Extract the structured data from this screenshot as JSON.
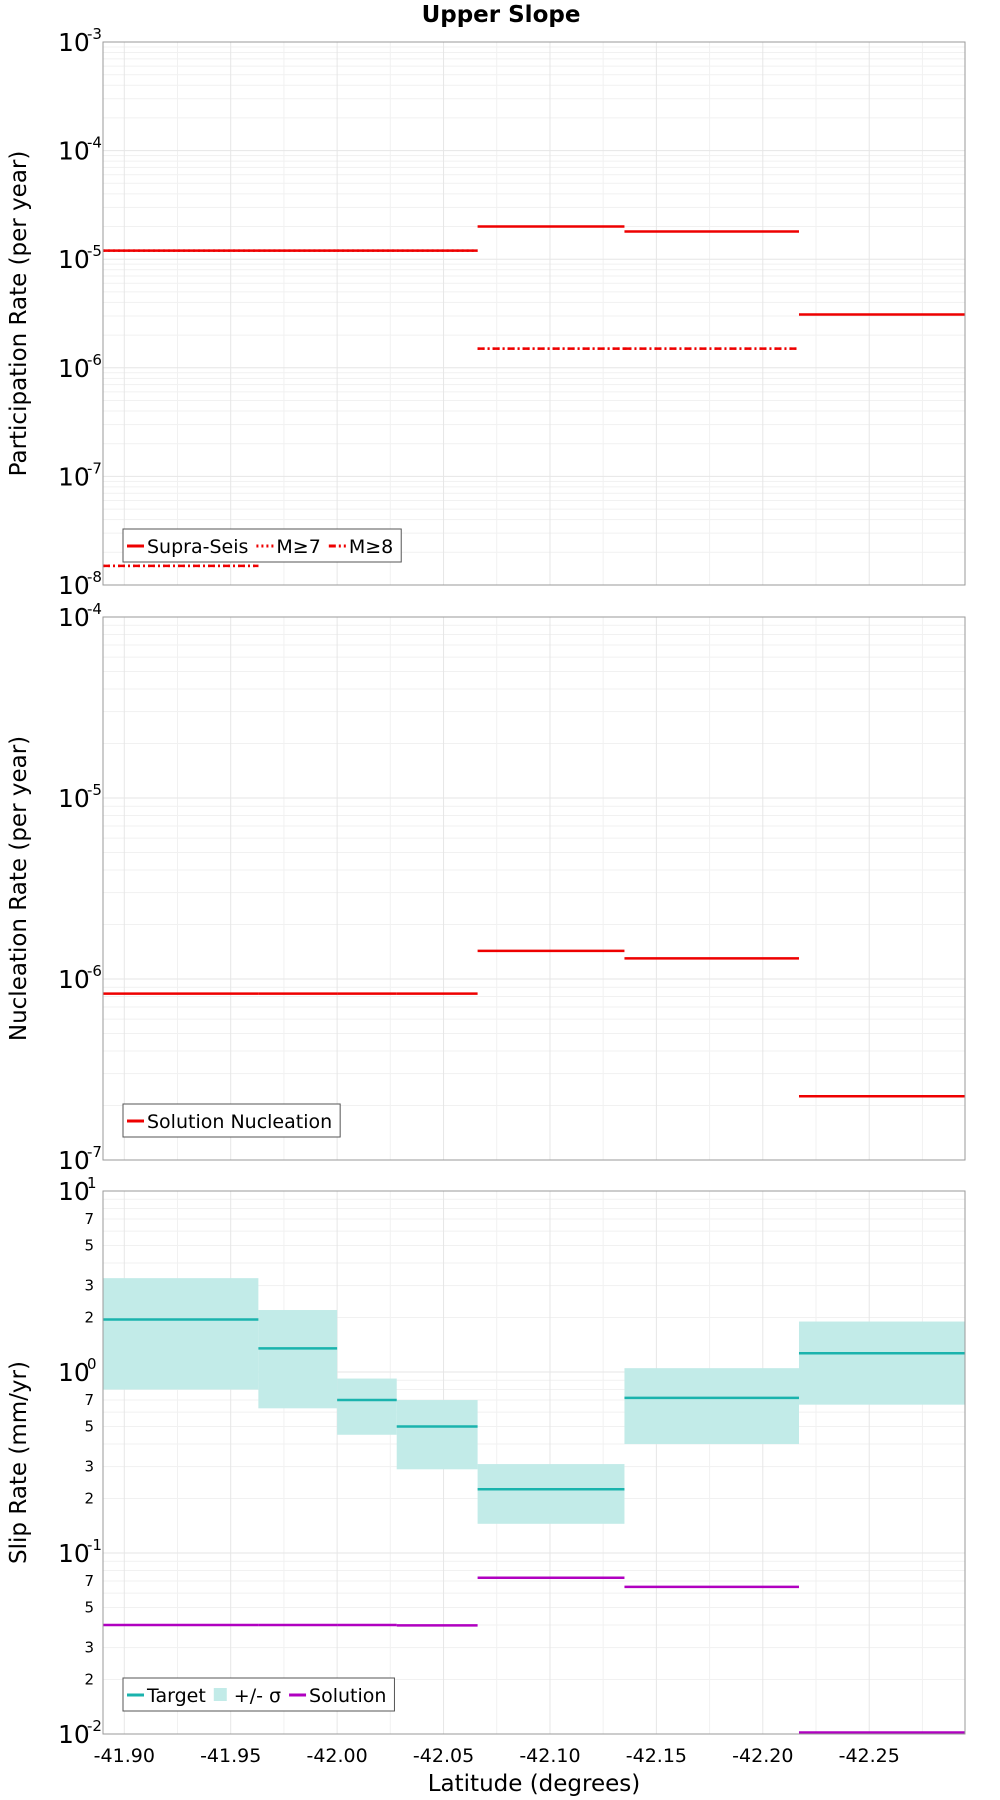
{
  "chart_data": {
    "type": "line",
    "title": "Upper Slope",
    "xlabel": "Latitude (degrees)",
    "xlim": [
      -41.89,
      -42.295
    ],
    "x_ticks": [
      -41.9,
      -41.95,
      -42.0,
      -42.05,
      -42.1,
      -42.15,
      -42.2,
      -42.25
    ],
    "x_tick_labels": [
      "-41.90",
      "-41.95",
      "-42.00",
      "-42.05",
      "-42.10",
      "-42.15",
      "-42.20",
      "-42.25"
    ],
    "panels": [
      {
        "name": "participation",
        "ylabel": "Participation Rate (per year)",
        "yscale": "log",
        "ylim": [
          1e-08,
          0.001
        ],
        "y_major_exponents": [
          -8,
          -7,
          -6,
          -5,
          -4,
          -3
        ],
        "y_minor_labels": [],
        "legend": [
          {
            "label": "Supra-Seis",
            "style": "solid",
            "color": "#ee0000"
          },
          {
            "label": "M≥7",
            "style": "dotted",
            "color": "#ee0000"
          },
          {
            "label": "M≥8",
            "style": "dashdot",
            "color": "#ee0000"
          }
        ],
        "series": [
          {
            "name": "Supra-Seis",
            "style": "solid",
            "color": "#ee0000",
            "segments": [
              {
                "x0": -41.89,
                "x1": -41.963,
                "y": 1.2e-05
              },
              {
                "x0": -41.963,
                "x1": -42.0,
                "y": 1.2e-05
              },
              {
                "x0": -42.0,
                "x1": -42.028,
                "y": 1.2e-05
              },
              {
                "x0": -42.028,
                "x1": -42.066,
                "y": 1.2e-05
              },
              {
                "x0": -42.066,
                "x1": -42.135,
                "y": 2e-05
              },
              {
                "x0": -42.135,
                "x1": -42.217,
                "y": 1.8e-05
              },
              {
                "x0": -42.217,
                "x1": -42.295,
                "y": 3.1e-06
              }
            ]
          },
          {
            "name": "M≥7",
            "style": "dotted",
            "color": "#ee0000",
            "segments": [
              {
                "x0": -41.89,
                "x1": -41.963,
                "y": 1.2e-05
              },
              {
                "x0": -41.963,
                "x1": -42.0,
                "y": 1.2e-05
              },
              {
                "x0": -42.0,
                "x1": -42.028,
                "y": 1.2e-05
              },
              {
                "x0": -42.028,
                "x1": -42.066,
                "y": 1.2e-05
              },
              {
                "x0": -42.066,
                "x1": -42.135,
                "y": 1.5e-06
              },
              {
                "x0": -42.135,
                "x1": -42.217,
                "y": 1.5e-06
              },
              {
                "x0": -41.89,
                "x1": -41.963,
                "y": 1.5e-08
              }
            ]
          },
          {
            "name": "M≥8",
            "style": "dashdot",
            "color": "#ee0000",
            "segments": [
              {
                "x0": -42.066,
                "x1": -42.135,
                "y": 1.5e-06
              },
              {
                "x0": -42.135,
                "x1": -42.217,
                "y": 1.5e-06
              },
              {
                "x0": -41.89,
                "x1": -41.963,
                "y": 1.5e-08
              }
            ]
          }
        ]
      },
      {
        "name": "nucleation",
        "ylabel": "Nucleation Rate (per year)",
        "yscale": "log",
        "ylim": [
          1e-07,
          0.0001
        ],
        "y_major_exponents": [
          -7,
          -6,
          -5,
          -4
        ],
        "y_minor_labels": [],
        "legend": [
          {
            "label": "Solution Nucleation",
            "style": "solid",
            "color": "#ee0000"
          }
        ],
        "series": [
          {
            "name": "Solution Nucleation",
            "style": "solid",
            "color": "#ee0000",
            "segments": [
              {
                "x0": -41.89,
                "x1": -41.963,
                "y": 8.3e-07
              },
              {
                "x0": -41.963,
                "x1": -42.0,
                "y": 8.3e-07
              },
              {
                "x0": -42.0,
                "x1": -42.028,
                "y": 8.3e-07
              },
              {
                "x0": -42.028,
                "x1": -42.066,
                "y": 8.3e-07
              },
              {
                "x0": -42.066,
                "x1": -42.135,
                "y": 1.43e-06
              },
              {
                "x0": -42.135,
                "x1": -42.217,
                "y": 1.3e-06
              },
              {
                "x0": -42.217,
                "x1": -42.295,
                "y": 2.25e-07
              }
            ]
          }
        ]
      },
      {
        "name": "slip",
        "ylabel": "Slip Rate (mm/yr)",
        "yscale": "log",
        "ylim": [
          0.01,
          10
        ],
        "y_major_exponents": [
          -2,
          -1,
          0,
          1
        ],
        "y_minor_labels": [
          "2",
          "3",
          "5",
          "7"
        ],
        "legend": [
          {
            "label": "Target",
            "style": "solid",
            "color": "#1ab3ad"
          },
          {
            "label": "+/- σ",
            "style": "band",
            "color": "#c2ebe8"
          },
          {
            "label": "Solution",
            "style": "solid",
            "color": "#b000c0"
          }
        ],
        "bands": [
          {
            "x0": -41.89,
            "x1": -41.963,
            "low": 0.8,
            "high": 3.3
          },
          {
            "x0": -41.963,
            "x1": -42.0,
            "low": 0.63,
            "high": 2.2
          },
          {
            "x0": -42.0,
            "x1": -42.028,
            "low": 0.45,
            "high": 0.92
          },
          {
            "x0": -42.028,
            "x1": -42.066,
            "low": 0.29,
            "high": 0.7
          },
          {
            "x0": -42.066,
            "x1": -42.135,
            "low": 0.145,
            "high": 0.31
          },
          {
            "x0": -42.135,
            "x1": -42.217,
            "low": 0.4,
            "high": 1.05
          },
          {
            "x0": -42.217,
            "x1": -42.295,
            "low": 0.66,
            "high": 1.9
          }
        ],
        "series": [
          {
            "name": "Target",
            "style": "solid",
            "color": "#1ab3ad",
            "segments": [
              {
                "x0": -41.89,
                "x1": -41.963,
                "y": 1.95
              },
              {
                "x0": -41.963,
                "x1": -42.0,
                "y": 1.35
              },
              {
                "x0": -42.0,
                "x1": -42.028,
                "y": 0.7
              },
              {
                "x0": -42.028,
                "x1": -42.066,
                "y": 0.5
              },
              {
                "x0": -42.066,
                "x1": -42.135,
                "y": 0.225
              },
              {
                "x0": -42.135,
                "x1": -42.217,
                "y": 0.72
              },
              {
                "x0": -42.217,
                "x1": -42.295,
                "y": 1.27
              }
            ]
          },
          {
            "name": "Solution",
            "style": "solid",
            "color": "#b000c0",
            "segments": [
              {
                "x0": -41.89,
                "x1": -41.963,
                "y": 0.04
              },
              {
                "x0": -41.963,
                "x1": -42.0,
                "y": 0.04
              },
              {
                "x0": -42.0,
                "x1": -42.028,
                "y": 0.04
              },
              {
                "x0": -42.028,
                "x1": -42.066,
                "y": 0.0398
              },
              {
                "x0": -42.066,
                "x1": -42.135,
                "y": 0.073
              },
              {
                "x0": -42.135,
                "x1": -42.217,
                "y": 0.065
              },
              {
                "x0": -42.217,
                "x1": -42.295,
                "y": 0.0102
              }
            ]
          }
        ]
      }
    ]
  }
}
